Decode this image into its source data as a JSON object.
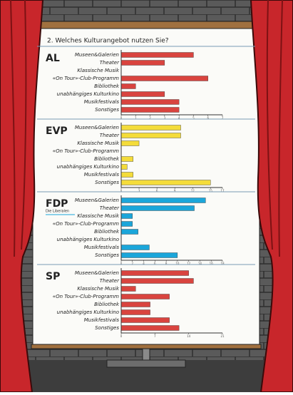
{
  "header": {
    "title": "2. Welches Kulturangebot nutzen Sie?"
  },
  "chart_data": [
    {
      "type": "bar",
      "party": "AL",
      "color": "#d9443f",
      "categories": [
        "Museen&Galerien",
        "Theater",
        "Klassische Musik",
        "«On Tour»-Club-Programm",
        "Bibliothek",
        "unabhängiges Kulturkino",
        "Musikfestivals",
        "Sonstiges"
      ],
      "values": [
        5,
        3,
        0,
        6,
        1,
        3,
        4,
        4
      ],
      "xlim": [
        0,
        7
      ],
      "xticks": [
        0,
        1,
        2,
        3,
        4,
        5,
        6,
        7
      ]
    },
    {
      "type": "bar",
      "party": "EVP",
      "color": "#f4dc3a",
      "categories": [
        "Museen&Galerien",
        "Theater",
        "Klassische Musik",
        "«On Tour»-Club-Programm",
        "Bibliothek",
        "unabhängiges Kulturkino",
        "Musikfestivals",
        "Sonstiges"
      ],
      "values": [
        10,
        10,
        3,
        0,
        2,
        1,
        2,
        15
      ],
      "xlim": [
        0,
        17
      ],
      "xticks": [
        0,
        3,
        6,
        9,
        12,
        15,
        17
      ]
    },
    {
      "type": "bar",
      "party": "FDP",
      "party_subtitle": "Die Liberalen",
      "color": "#1ba6da",
      "categories": [
        "Museen&Galerien",
        "Theater",
        "Klassische Musik",
        "«On Tour»-Club-Programm",
        "Bibliothek",
        "unabhängiges Kulturkino",
        "Musikfestivals",
        "Sonstiges"
      ],
      "values": [
        15,
        13,
        2,
        2,
        3,
        0,
        5,
        10
      ],
      "xlim": [
        0,
        18
      ],
      "xticks": [
        0,
        2,
        4,
        6,
        8,
        10,
        12,
        14,
        16,
        18
      ]
    },
    {
      "type": "bar",
      "party": "SP",
      "color": "#d9443f",
      "categories": [
        "Museen&Galerien",
        "Theater",
        "Klassische Musik",
        "«On Tour»-Club-Programm",
        "Bibliothek",
        "unabhängiges Kulturkino",
        "Musikfestivals",
        "Sonstiges"
      ],
      "values": [
        14,
        15,
        3,
        10,
        6,
        6,
        10,
        12
      ],
      "xlim": [
        0,
        21
      ],
      "xticks": [
        0,
        7,
        14,
        21
      ]
    }
  ]
}
